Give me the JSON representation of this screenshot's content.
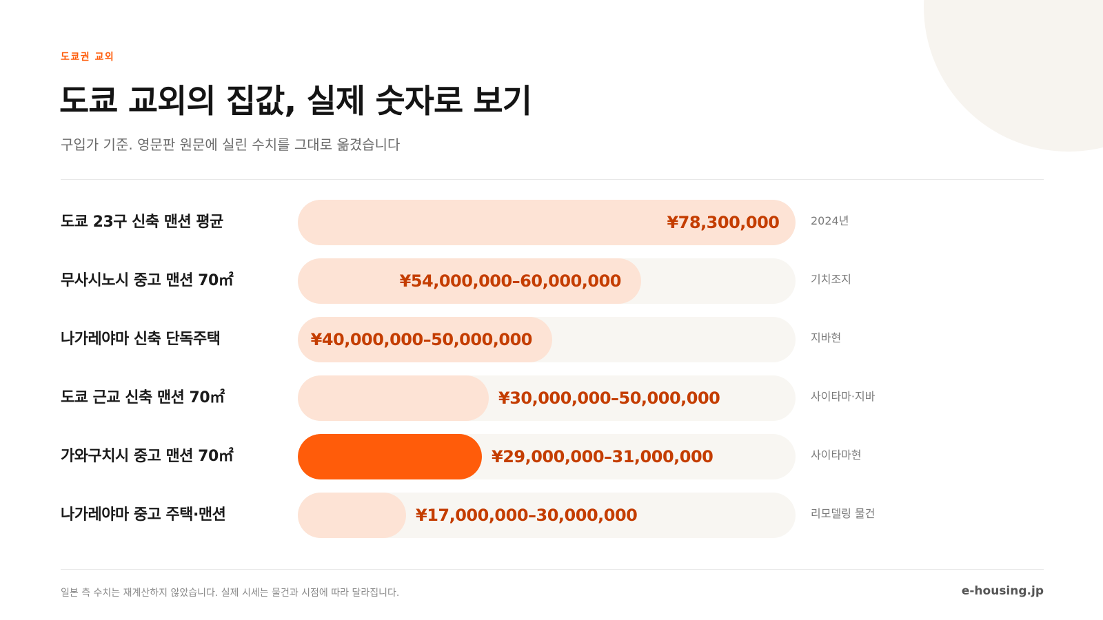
{
  "header": {
    "eyebrow": "도쿄권 교외",
    "title": "도쿄 교외의 집값, 실제 숫자로 보기",
    "subtitle": "구입가 기준. 영문판 원문에 실린 수치를 그대로 옮겼습니다"
  },
  "colors": {
    "accent": "#ff5c0a",
    "bar_fill": "#fde3d5",
    "track": "#f8f6f2",
    "value_text": "#c43d00",
    "deco": "#f7f4ef"
  },
  "chart_data": {
    "type": "bar",
    "orientation": "horizontal",
    "unit": "JPY",
    "xlim": [
      0,
      78300000
    ],
    "grid": false,
    "highlight_index": 4,
    "categories": [
      "도쿄 23구 신축 맨션 평균",
      "무사시노시 중고 맨션 70㎡",
      "나가레야마 신축 단독주택",
      "도쿄 근교 신축 맨션 70㎡",
      "가와구치시 중고 맨션 70㎡",
      "나가레야마 중고 주택·맨션"
    ],
    "ranges": [
      [
        78300000,
        78300000
      ],
      [
        54000000,
        60000000
      ],
      [
        40000000,
        50000000
      ],
      [
        30000000,
        50000000
      ],
      [
        29000000,
        31000000
      ],
      [
        17000000,
        30000000
      ]
    ],
    "value_labels": [
      "¥78,300,000",
      "¥54,000,000–60,000,000",
      "¥40,000,000–50,000,000",
      "¥30,000,000–50,000,000",
      "¥29,000,000–31,000,000",
      "¥17,000,000–30,000,000"
    ],
    "notes": [
      "2024년",
      "기치조지",
      "지바현",
      "사이타마·지바",
      "사이타마현",
      "리모델링 물건"
    ]
  },
  "footer": {
    "footnote": "일본 측 수치는 재계산하지 않았습니다. 실제 시세는 물건과 시점에 따라 달라집니다.",
    "brand": "e-housing.jp"
  }
}
